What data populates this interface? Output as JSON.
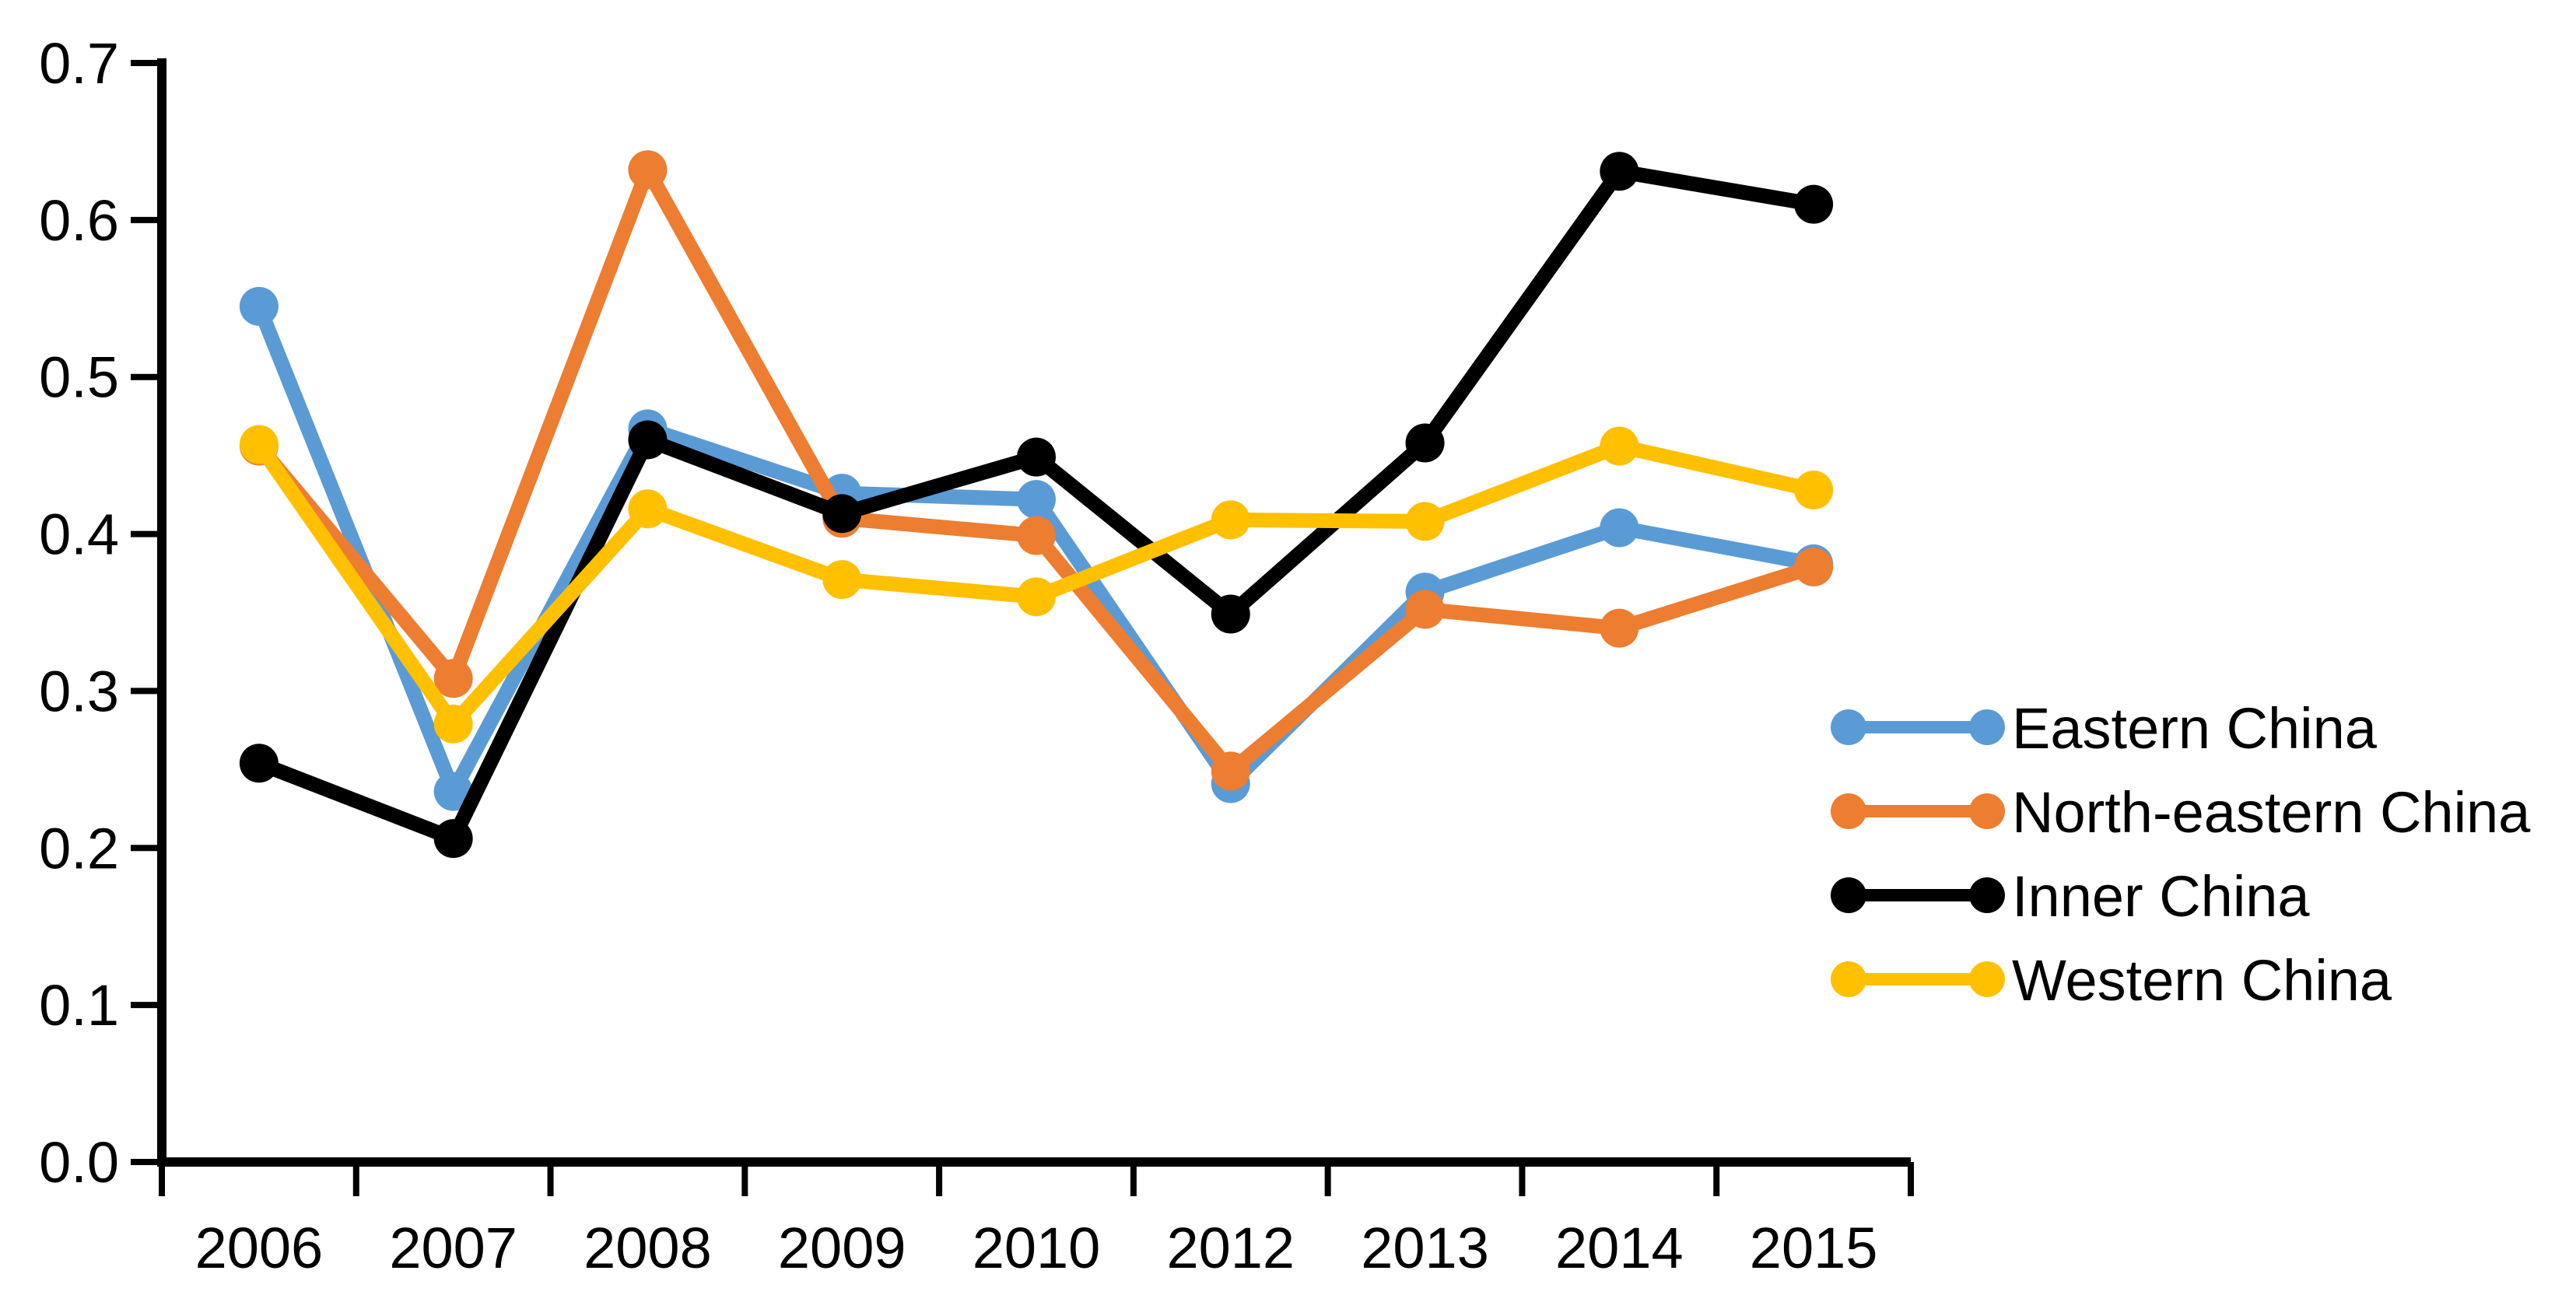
{
  "chart_data": {
    "type": "line",
    "title": "",
    "xlabel": "",
    "ylabel": "",
    "categories": [
      "2006",
      "2007",
      "2008",
      "2009",
      "2010",
      "2012",
      "2013",
      "2014",
      "2015"
    ],
    "series": [
      {
        "name": "Eastern China",
        "color": "#5B9BD5",
        "values": [
          0.545,
          0.236,
          0.467,
          0.426,
          0.422,
          0.241,
          0.363,
          0.404,
          0.381
        ]
      },
      {
        "name": "North-eastern China",
        "color": "#ED7D31",
        "values": [
          0.456,
          0.308,
          0.632,
          0.41,
          0.399,
          0.249,
          0.352,
          0.34,
          0.379
        ]
      },
      {
        "name": "Inner China",
        "color": "#000000",
        "values": [
          0.254,
          0.206,
          0.46,
          0.413,
          0.449,
          0.349,
          0.458,
          0.631,
          0.61
        ]
      },
      {
        "name": "Western China",
        "color": "#FFC000",
        "values": [
          0.457,
          0.279,
          0.416,
          0.371,
          0.36,
          0.409,
          0.408,
          0.456,
          0.428
        ]
      }
    ],
    "ylim": [
      0.0,
      0.7
    ],
    "ytick_labels": [
      "0.0",
      "0.1",
      "0.2",
      "0.3",
      "0.4",
      "0.5",
      "0.6",
      "0.7"
    ],
    "grid": false,
    "legend_position": "right",
    "marker": "circle",
    "axis_color": "#000000",
    "background_color": "#FFFFFF"
  }
}
